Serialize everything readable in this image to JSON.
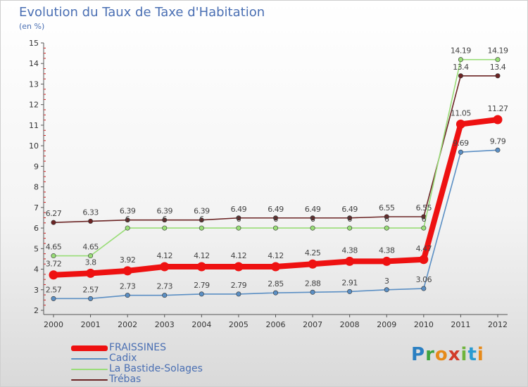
{
  "title": "Evolution du Taux de Taxe d'Habitation",
  "subtitle": "(en %)",
  "logo_text": "Proxiti",
  "chart_data": {
    "type": "line",
    "x": [
      "2000",
      "2001",
      "2002",
      "2003",
      "2004",
      "2005",
      "2006",
      "2007",
      "2008",
      "2009",
      "2010",
      "2011",
      "2012"
    ],
    "ylim": [
      2,
      15
    ],
    "yticks": [
      2,
      3,
      4,
      5,
      6,
      7,
      8,
      9,
      10,
      11,
      12,
      13,
      14,
      15
    ],
    "grid": false,
    "legend_position": "bottom-left",
    "series": [
      {
        "name": "FRAISSINES",
        "color": "#ee1111",
        "values": [
          3.72,
          3.8,
          3.92,
          4.12,
          4.12,
          4.12,
          4.12,
          4.25,
          4.38,
          4.38,
          4.47,
          11.05,
          11.27
        ],
        "labels": [
          "3.72",
          "3.8",
          "3.92",
          "4.12",
          "4.12",
          "4.12",
          "4.12",
          "4.25",
          "4.38",
          "4.38",
          "4.47",
          "11.05",
          "11.27"
        ]
      },
      {
        "name": "Cadix",
        "color": "#5b8fc4",
        "values": [
          2.57,
          2.57,
          2.73,
          2.73,
          2.79,
          2.79,
          2.85,
          2.88,
          2.91,
          3,
          3.06,
          9.69,
          9.79
        ],
        "labels": [
          "2.57",
          "2.57",
          "2.73",
          "2.73",
          "2.79",
          "2.79",
          "2.85",
          "2.88",
          "2.91",
          "3",
          "3.06",
          "9.69",
          "9.79"
        ]
      },
      {
        "name": "La Bastide-Solages",
        "color": "#99dd77",
        "values": [
          4.65,
          4.65,
          6,
          6,
          6,
          6,
          6,
          6,
          6,
          6,
          6,
          14.19,
          14.19
        ],
        "labels": [
          "4.65",
          "4.65",
          "6",
          "6",
          "6",
          "6",
          "6",
          "6",
          "6",
          "6",
          "6",
          "14.19",
          "14.19"
        ]
      },
      {
        "name": "Trébas",
        "color": "#6b2424",
        "values": [
          6.27,
          6.33,
          6.39,
          6.39,
          6.39,
          6.49,
          6.49,
          6.49,
          6.49,
          6.55,
          6.55,
          13.4,
          13.4
        ],
        "labels": [
          "6.27",
          "6.33",
          "6.39",
          "6.39",
          "6.39",
          "6.49",
          "6.49",
          "6.49",
          "6.49",
          "6.55",
          "6.55",
          "13.4",
          "13.4"
        ]
      }
    ]
  }
}
